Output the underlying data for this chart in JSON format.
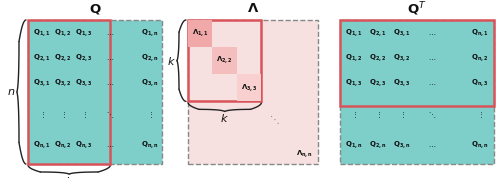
{
  "fig_width": 5.02,
  "fig_height": 1.78,
  "dpi": 100,
  "bg_color": "#ffffff",
  "teal_color": "#7ececa",
  "pink_light_color": "#f7e0e0",
  "pink_mid1_color": "#f0a8a8",
  "pink_mid2_color": "#f5bebe",
  "pink_mid3_color": "#f8d0d0",
  "red_border_color": "#d9545a",
  "dashed_color": "#888888",
  "brace_color": "#222222",
  "text_color": "#111111",
  "matrix_Q_rows": [
    [
      "Q_{1,1}",
      "Q_{1,2}",
      "Q_{1,3}",
      "\\cdots",
      "Q_{1,n}"
    ],
    [
      "Q_{2,1}",
      "Q_{2,2}",
      "Q_{2,3}",
      "\\cdots",
      "Q_{2,n}"
    ],
    [
      "Q_{3,1}",
      "Q_{3,2}",
      "Q_{3,3}",
      "\\cdots",
      "Q_{3,n}"
    ],
    [
      "\\vdots",
      "\\vdots",
      "\\vdots",
      "\\ddots",
      "\\vdots"
    ],
    [
      "Q_{n,1}",
      "Q_{n,2}",
      "Q_{n,3}",
      "\\cdots",
      "Q_{n,n}"
    ]
  ],
  "matrix_QT_rows": [
    [
      "Q_{1,1}",
      "Q_{2,1}",
      "Q_{3,1}",
      "\\cdots",
      "Q_{n,1}"
    ],
    [
      "Q_{1,2}",
      "Q_{2,2}",
      "Q_{3,2}",
      "\\cdots",
      "Q_{n,2}"
    ],
    [
      "Q_{1,3}",
      "Q_{2,3}",
      "Q_{3,3}",
      "\\cdots",
      "Q_{n,3}"
    ],
    [
      "\\vdots",
      "\\vdots",
      "\\vdots",
      "\\ddots",
      "\\vdots"
    ],
    [
      "Q_{1,n}",
      "Q_{2,n}",
      "Q_{3,n}",
      "\\cdots",
      "Q_{n,n}"
    ]
  ],
  "lambda_diag_labels": [
    "\\Lambda_{1,1}",
    "\\Lambda_{2,2}",
    "\\Lambda_{3,3}"
  ],
  "lambda_nn_label": "\\Lambda_{n,n}",
  "title_Q": "Q",
  "title_Lambda": "\\Lambda",
  "title_QT": "Q^T",
  "label_n": "n",
  "label_k": "k",
  "font_size_entry": 5.0,
  "font_size_title": 9.5,
  "font_size_label": 8.0
}
